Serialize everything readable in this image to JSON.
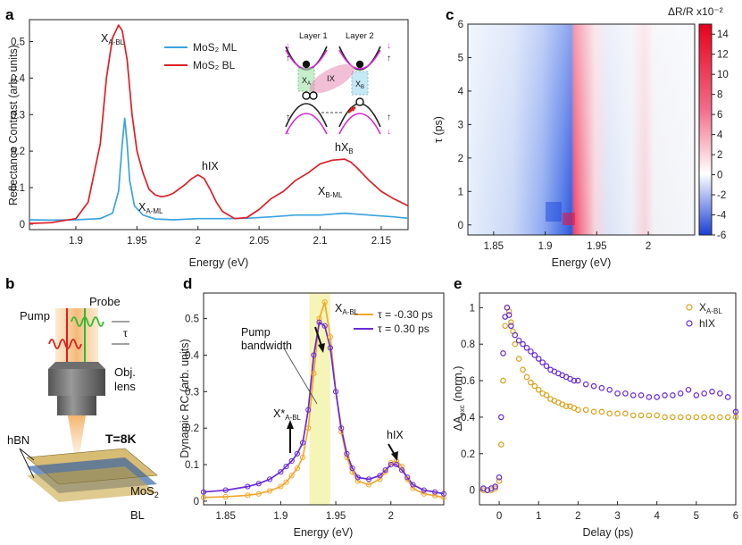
{
  "figure": {
    "panel_labels": [
      "a",
      "b",
      "c",
      "d",
      "e"
    ]
  },
  "colors": {
    "ml_blue": "#3aa3e0",
    "bl_red": "#dd1f26",
    "tau_neg_orange": "#f2a830",
    "tau_pos_purple": "#6a2ad8",
    "exc_gold": "#d9a21b",
    "hix_violet": "#6a2ad8",
    "pump_band_yellow": "#f4f2a6"
  },
  "panel_a": {
    "ylabel": "Reflectance Contrast (arb. units)",
    "xlabel": "Energy (eV)",
    "annotations": {
      "xabl_main": "X",
      "xabl_sub": "A-BL",
      "xaml_main": "X",
      "xaml_sub": "A-ML",
      "hix": "hIX",
      "hxb_main": "hX",
      "hxb_sub": "B",
      "xbml_main": "X",
      "xbml_sub": "B-ML"
    },
    "inset": {
      "layer1": "Layer 1",
      "layer2": "Layer 2",
      "ix": "IX",
      "xa_main": "X",
      "xa_sub": "A",
      "xb_main": "X",
      "xb_sub": "B"
    }
  },
  "panel_b": {
    "pump": "Pump",
    "probe": "Probe",
    "tau": "τ",
    "obj_lens_line1": "Obj.",
    "obj_lens_line2": "lens",
    "temperature": "T=8K",
    "hbn": "hBN",
    "mos2_main": "MoS",
    "mos2_sub": "2",
    "mos2_bl": "BL"
  },
  "panel_c": {
    "ylabel": "τ (ps)",
    "xlabel": "Energy (eV)",
    "colorbar_title": "ΔR/R x10⁻²",
    "colorbar_ticks": [
      "14",
      "12",
      "10",
      "8",
      "6",
      "4",
      "2",
      "0",
      "-2",
      "-4",
      "-6"
    ]
  },
  "panel_d": {
    "ylabel": "Dynamic RC (arb. units)",
    "xlabel": "Energy (eV)",
    "pump_bw_line1": "Pump",
    "pump_bw_line2": "bandwidth",
    "xabl_main": "X",
    "xabl_sub": "A-BL",
    "xstar_main": "X*",
    "xstar_sub": "A-BL",
    "hix": "hIX"
  },
  "panel_e": {
    "ylabel_main": "ΔA",
    "ylabel_sub": "exc",
    "ylabel_tail": " (norm.)",
    "xlabel": "Delay (ps)"
  },
  "chart_data": [
    {
      "id": "a",
      "type": "line",
      "xlabel": "Energy (eV)",
      "ylabel": "Reflectance Contrast (arb. units)",
      "xlim": [
        1.862,
        2.172
      ],
      "ylim": [
        -0.015,
        0.56
      ],
      "x_ticks": [
        "1.9",
        "1.95",
        "2",
        "2.05",
        "2.1",
        "2.15"
      ],
      "x_tick_values": [
        1.9,
        1.95,
        2.0,
        2.05,
        2.1,
        2.15
      ],
      "y_ticks": [
        "0",
        "0.1",
        "0.2",
        "0.3",
        "0.4",
        "0.5"
      ],
      "y_tick_values": [
        0,
        0.1,
        0.2,
        0.3,
        0.4,
        0.5
      ],
      "legend_position": "top-center",
      "series": [
        {
          "name": "MoS₂ ML",
          "color": "#3aa3e0",
          "x": [
            1.862,
            1.88,
            1.9,
            1.92,
            1.93,
            1.935,
            1.938,
            1.94,
            1.942,
            1.944,
            1.948,
            1.955,
            1.965,
            1.98,
            2.0,
            2.02,
            2.04,
            2.06,
            2.08,
            2.1,
            2.12,
            2.14,
            2.16,
            2.172
          ],
          "y": [
            0.012,
            0.011,
            0.012,
            0.015,
            0.03,
            0.09,
            0.22,
            0.29,
            0.22,
            0.12,
            0.05,
            0.025,
            0.014,
            0.012,
            0.015,
            0.015,
            0.016,
            0.02,
            0.025,
            0.025,
            0.03,
            0.025,
            0.02,
            0.016
          ]
        },
        {
          "name": "MoS₂ BL",
          "color": "#dd1f26",
          "x": [
            1.862,
            1.88,
            1.9,
            1.91,
            1.92,
            1.925,
            1.93,
            1.935,
            1.938,
            1.942,
            1.946,
            1.95,
            1.955,
            1.96,
            1.965,
            1.97,
            1.975,
            1.98,
            1.99,
            1.995,
            2.0,
            2.005,
            2.01,
            2.015,
            2.02,
            2.03,
            2.04,
            2.05,
            2.06,
            2.07,
            2.08,
            2.09,
            2.1,
            2.11,
            2.12,
            2.125,
            2.13,
            2.14,
            2.15,
            2.16,
            2.172
          ],
          "y": [
            0.002,
            0.004,
            0.015,
            0.06,
            0.22,
            0.4,
            0.51,
            0.545,
            0.53,
            0.45,
            0.3,
            0.2,
            0.14,
            0.095,
            0.08,
            0.075,
            0.078,
            0.085,
            0.11,
            0.125,
            0.135,
            0.125,
            0.095,
            0.06,
            0.035,
            0.015,
            0.018,
            0.04,
            0.07,
            0.09,
            0.12,
            0.14,
            0.165,
            0.175,
            0.178,
            0.17,
            0.155,
            0.12,
            0.09,
            0.07,
            0.05
          ]
        }
      ]
    },
    {
      "id": "c",
      "type": "heatmap",
      "xlabel": "Energy (eV)",
      "ylabel": "τ (ps)",
      "xlim": [
        1.825,
        2.045
      ],
      "ylim": [
        -0.3,
        6.0
      ],
      "x_ticks": [
        "1.85",
        "1.9",
        "1.95",
        "2"
      ],
      "x_tick_values": [
        1.85,
        1.9,
        1.95,
        2.0
      ],
      "y_ticks": [
        "0",
        "1",
        "2",
        "3",
        "4",
        "5",
        "6"
      ],
      "y_tick_values": [
        0,
        1,
        2,
        3,
        4,
        5,
        6
      ],
      "colorbar": {
        "label": "ΔR/R x10⁻²",
        "min": -6,
        "max": 15
      },
      "features": [
        {
          "energy_eV": 1.88,
          "dR_R": -1.2
        },
        {
          "energy_eV": 1.91,
          "dR_R": -3.5
        },
        {
          "energy_eV": 1.926,
          "dR_R": -5.5
        },
        {
          "energy_eV": 1.937,
          "dR_R": 12
        },
        {
          "energy_eV": 1.95,
          "dR_R": 4
        },
        {
          "energy_eV": 1.98,
          "dR_R": -1.5
        },
        {
          "energy_eV": 2.0,
          "dR_R": 3
        },
        {
          "energy_eV": 2.04,
          "dR_R": -0.5
        }
      ]
    },
    {
      "id": "d",
      "type": "line",
      "xlabel": "Energy (eV)",
      "ylabel": "Dynamic RC (arb. units)",
      "xlim": [
        1.83,
        2.048
      ],
      "ylim": [
        -0.01,
        0.57
      ],
      "x_ticks": [
        "1.85",
        "1.9",
        "1.95",
        "2"
      ],
      "x_tick_values": [
        1.85,
        1.9,
        1.95,
        2.0
      ],
      "y_ticks": [
        "0",
        "0.1",
        "0.2",
        "0.3",
        "0.4",
        "0.5"
      ],
      "y_tick_values": [
        0,
        0.1,
        0.2,
        0.3,
        0.4,
        0.5
      ],
      "legend_position": "top-right",
      "pump_band": [
        1.926,
        1.945
      ],
      "series": [
        {
          "name": "τ = -0.30 ps",
          "color": "#f2a830",
          "x": [
            1.83,
            1.85,
            1.87,
            1.88,
            1.89,
            1.9,
            1.905,
            1.91,
            1.915,
            1.92,
            1.925,
            1.93,
            1.935,
            1.94,
            1.945,
            1.95,
            1.955,
            1.96,
            1.965,
            1.97,
            1.98,
            1.99,
            1.995,
            2.0,
            2.005,
            2.01,
            2.015,
            2.02,
            2.03,
            2.04,
            2.048
          ],
          "y": [
            0.01,
            0.012,
            0.016,
            0.02,
            0.028,
            0.04,
            0.052,
            0.07,
            0.09,
            0.12,
            0.2,
            0.35,
            0.5,
            0.545,
            0.45,
            0.3,
            0.19,
            0.12,
            0.08,
            0.055,
            0.045,
            0.06,
            0.08,
            0.105,
            0.11,
            0.095,
            0.06,
            0.035,
            0.02,
            0.015,
            0.01
          ]
        },
        {
          "name": "τ = 0.30 ps",
          "color": "#6a2ad8",
          "x": [
            1.83,
            1.85,
            1.87,
            1.88,
            1.89,
            1.9,
            1.905,
            1.91,
            1.915,
            1.92,
            1.925,
            1.93,
            1.935,
            1.94,
            1.945,
            1.95,
            1.955,
            1.96,
            1.965,
            1.97,
            1.98,
            1.99,
            1.995,
            2.0,
            2.005,
            2.01,
            2.015,
            2.02,
            2.03,
            2.04,
            2.048
          ],
          "y": [
            0.025,
            0.03,
            0.04,
            0.048,
            0.06,
            0.08,
            0.095,
            0.11,
            0.13,
            0.16,
            0.25,
            0.4,
            0.49,
            0.48,
            0.42,
            0.3,
            0.2,
            0.13,
            0.09,
            0.065,
            0.06,
            0.07,
            0.085,
            0.1,
            0.1,
            0.085,
            0.065,
            0.045,
            0.03,
            0.025,
            0.02
          ]
        }
      ]
    },
    {
      "id": "e",
      "type": "scatter",
      "xlabel": "Delay (ps)",
      "ylabel": "ΔA_exc (norm.)",
      "xlim": [
        -0.5,
        6.0
      ],
      "ylim": [
        -0.08,
        1.08
      ],
      "x_ticks": [
        "0",
        "1",
        "2",
        "3",
        "4",
        "5",
        "6"
      ],
      "x_tick_values": [
        0,
        1,
        2,
        3,
        4,
        5,
        6
      ],
      "y_ticks": [
        "0",
        "0.2",
        "0.4",
        "0.6",
        "0.8",
        "1"
      ],
      "y_tick_values": [
        0,
        0.2,
        0.4,
        0.6,
        0.8,
        1.0
      ],
      "legend_position": "top-right",
      "series": [
        {
          "name": "X_A-BL",
          "color": "#d9a21b",
          "x": [
            -0.4,
            -0.3,
            -0.2,
            -0.1,
            0.0,
            0.05,
            0.1,
            0.15,
            0.2,
            0.25,
            0.3,
            0.35,
            0.4,
            0.5,
            0.6,
            0.7,
            0.8,
            0.9,
            1.0,
            1.1,
            1.2,
            1.3,
            1.4,
            1.5,
            1.6,
            1.7,
            1.8,
            1.9,
            2.0,
            2.2,
            2.4,
            2.6,
            2.8,
            3.0,
            3.2,
            3.4,
            3.6,
            3.8,
            4.0,
            4.2,
            4.4,
            4.6,
            4.8,
            5.0,
            5.2,
            5.4,
            5.6,
            5.8,
            6.0
          ],
          "y": [
            0.0,
            0.0,
            0.0,
            0.01,
            0.05,
            0.25,
            0.6,
            0.9,
            1.0,
            0.98,
            0.92,
            0.87,
            0.8,
            0.72,
            0.66,
            0.62,
            0.59,
            0.57,
            0.55,
            0.53,
            0.52,
            0.5,
            0.49,
            0.48,
            0.47,
            0.46,
            0.46,
            0.45,
            0.44,
            0.44,
            0.43,
            0.43,
            0.42,
            0.42,
            0.42,
            0.41,
            0.41,
            0.41,
            0.41,
            0.4,
            0.4,
            0.4,
            0.4,
            0.4,
            0.4,
            0.4,
            0.4,
            0.4,
            0.4
          ]
        },
        {
          "name": "hIX",
          "color": "#6a2ad8",
          "x": [
            -0.4,
            -0.3,
            -0.2,
            -0.1,
            0.0,
            0.05,
            0.1,
            0.15,
            0.2,
            0.25,
            0.3,
            0.4,
            0.5,
            0.6,
            0.7,
            0.8,
            0.9,
            1.0,
            1.1,
            1.2,
            1.3,
            1.4,
            1.5,
            1.6,
            1.7,
            1.8,
            1.9,
            2.0,
            2.2,
            2.4,
            2.6,
            2.8,
            3.0,
            3.2,
            3.4,
            3.6,
            3.8,
            4.0,
            4.2,
            4.4,
            4.6,
            4.8,
            5.0,
            5.2,
            5.4,
            5.6,
            5.8,
            6.0
          ],
          "y": [
            0.01,
            0.0,
            0.01,
            0.02,
            0.07,
            0.4,
            0.75,
            0.95,
            1.0,
            0.96,
            0.9,
            0.85,
            0.82,
            0.8,
            0.78,
            0.76,
            0.74,
            0.72,
            0.7,
            0.68,
            0.66,
            0.65,
            0.64,
            0.63,
            0.62,
            0.61,
            0.6,
            0.6,
            0.58,
            0.57,
            0.56,
            0.55,
            0.53,
            0.53,
            0.52,
            0.52,
            0.51,
            0.51,
            0.52,
            0.52,
            0.53,
            0.55,
            0.52,
            0.53,
            0.54,
            0.53,
            0.51,
            0.43
          ]
        }
      ]
    }
  ]
}
